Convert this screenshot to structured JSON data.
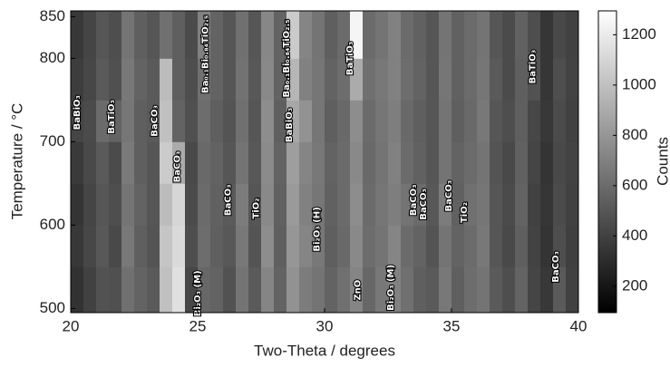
{
  "chart_data": {
    "type": "heatmap",
    "xlabel": "Two-Theta / degrees",
    "ylabel": "Temperature / °C",
    "colorbar_label": "Counts",
    "xlim": [
      20,
      40
    ],
    "ylim": [
      495,
      857
    ],
    "xticks": [
      20,
      25,
      30,
      35,
      40
    ],
    "yticks": [
      500,
      600,
      700,
      800,
      850
    ],
    "clim": [
      95,
      1295
    ],
    "colorbar_ticks": [
      200,
      400,
      600,
      800,
      1000,
      1200
    ],
    "colormap": "gray",
    "x_bins": [
      20,
      20.5,
      21,
      21.5,
      22,
      22.5,
      23,
      23.5,
      24,
      24.5,
      25,
      25.5,
      26,
      26.5,
      27,
      27.5,
      28,
      28.5,
      29,
      29.5,
      30,
      30.5,
      31,
      31.5,
      32,
      32.5,
      33,
      33.5,
      34,
      34.5,
      35,
      35.5,
      36,
      36.5,
      37,
      37.5,
      38,
      38.5,
      39,
      39.5,
      40
    ],
    "y_bins": [
      495,
      550,
      600,
      650,
      700,
      750,
      800,
      857
    ],
    "values": [
      [
        330,
        400,
        480,
        470,
        620,
        560,
        520,
        1000,
        1150,
        430,
        580,
        560,
        480,
        640,
        520,
        720,
        560,
        780,
        680,
        640,
        560,
        620,
        720,
        580,
        660,
        700,
        620,
        540,
        520,
        660,
        540,
        610,
        640,
        520,
        460,
        560,
        420,
        360,
        520,
        400
      ],
      [
        360,
        430,
        510,
        440,
        660,
        540,
        490,
        1020,
        1120,
        460,
        610,
        540,
        510,
        660,
        490,
        760,
        540,
        800,
        720,
        660,
        540,
        590,
        740,
        610,
        640,
        720,
        600,
        560,
        490,
        640,
        560,
        600,
        660,
        500,
        440,
        540,
        410,
        340,
        460,
        390
      ],
      [
        340,
        420,
        500,
        460,
        640,
        560,
        500,
        980,
        1100,
        450,
        600,
        550,
        520,
        680,
        500,
        740,
        550,
        820,
        700,
        650,
        550,
        600,
        760,
        600,
        650,
        690,
        640,
        600,
        510,
        680,
        550,
        620,
        650,
        500,
        450,
        560,
        400,
        350,
        450,
        400
      ],
      [
        370,
        440,
        520,
        450,
        670,
        540,
        500,
        1050,
        900,
        440,
        590,
        560,
        500,
        640,
        510,
        750,
        560,
        840,
        720,
        660,
        560,
        600,
        740,
        590,
        640,
        700,
        600,
        550,
        500,
        640,
        560,
        600,
        640,
        490,
        440,
        550,
        420,
        340,
        440,
        410
      ],
      [
        420,
        450,
        600,
        560,
        650,
        540,
        520,
        1000,
        560,
        470,
        610,
        540,
        490,
        620,
        500,
        760,
        540,
        880,
        780,
        650,
        540,
        590,
        760,
        600,
        650,
        690,
        590,
        540,
        500,
        640,
        540,
        590,
        660,
        500,
        460,
        540,
        430,
        360,
        450,
        400
      ],
      [
        380,
        430,
        520,
        470,
        660,
        560,
        520,
        980,
        540,
        460,
        620,
        560,
        500,
        630,
        510,
        740,
        560,
        950,
        700,
        650,
        560,
        610,
        900,
        620,
        660,
        700,
        610,
        560,
        500,
        650,
        550,
        600,
        650,
        520,
        450,
        540,
        480,
        350,
        460,
        410
      ],
      [
        360,
        420,
        500,
        460,
        640,
        540,
        500,
        620,
        540,
        450,
        700,
        560,
        500,
        620,
        500,
        730,
        560,
        1050,
        720,
        640,
        540,
        600,
        1250,
        600,
        640,
        700,
        600,
        550,
        500,
        640,
        550,
        600,
        640,
        500,
        450,
        550,
        460,
        350,
        440,
        400
      ]
    ],
    "annotations": [
      {
        "text": "BaBiO₃",
        "x": 20.25,
        "y": 735
      },
      {
        "text": "BaTiO₃",
        "x": 21.6,
        "y": 730
      },
      {
        "text": "BaCO₃",
        "x": 23.3,
        "y": 725
      },
      {
        "text": "BaCO₃",
        "x": 24.2,
        "y": 670
      },
      {
        "text": "Ba₀.₁Bi₀.₈₄TiO₂.₅",
        "x": 25.3,
        "y": 805
      },
      {
        "text": "Ba₀.₁Bi₀.₈₄TiO₂.₅",
        "x": 28.5,
        "y": 800
      },
      {
        "text": "BaTiO₃",
        "x": 31.0,
        "y": 800
      },
      {
        "text": "BaBiO₃",
        "x": 28.6,
        "y": 720
      },
      {
        "text": "BaCO₃",
        "x": 26.2,
        "y": 630
      },
      {
        "text": "TiO₂",
        "x": 27.3,
        "y": 620
      },
      {
        "text": "Bi₂O₃ (H)",
        "x": 29.7,
        "y": 595
      },
      {
        "text": "Bi₂O₃ (M)",
        "x": 25.0,
        "y": 518
      },
      {
        "text": "ZnO",
        "x": 31.3,
        "y": 522
      },
      {
        "text": "Bi₂O₃ (M)",
        "x": 32.6,
        "y": 525
      },
      {
        "text": "BaCO₃",
        "x": 33.5,
        "y": 630
      },
      {
        "text": "BaCO₃",
        "x": 33.9,
        "y": 625
      },
      {
        "text": "BaCO₃",
        "x": 34.9,
        "y": 635
      },
      {
        "text": "TiO₂",
        "x": 35.5,
        "y": 615
      },
      {
        "text": "BaTiO₃",
        "x": 38.2,
        "y": 790
      },
      {
        "text": "BaCO₃",
        "x": 39.1,
        "y": 550
      }
    ]
  }
}
